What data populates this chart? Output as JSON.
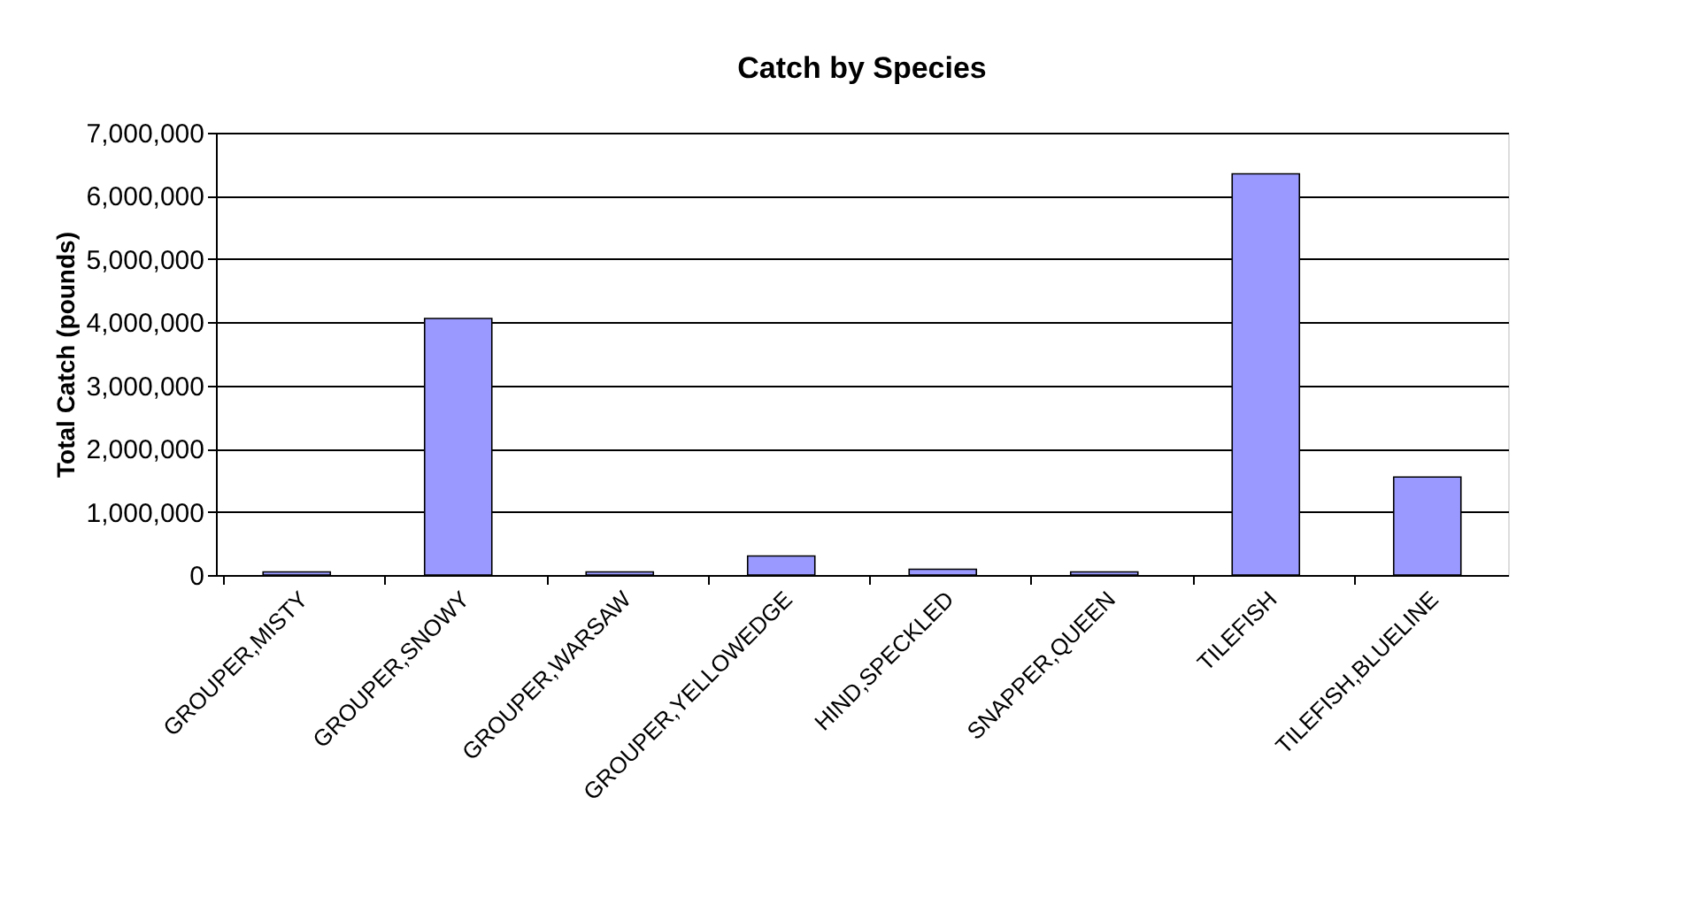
{
  "chart_data": {
    "type": "bar",
    "title": "Catch by Species",
    "ylabel": "Total Catch (pounds)",
    "categories": [
      "GROUPER,MISTY",
      "GROUPER,SNOWY",
      "GROUPER,WARSAW",
      "GROUPER,YELLOWEDGE",
      "HIND,SPECKLED",
      "SNAPPER,QUEEN",
      "TILEFISH",
      "TILEFISH,BLUELINE"
    ],
    "values": [
      50000,
      4060000,
      50000,
      300000,
      90000,
      50000,
      6350000,
      1550000
    ],
    "color": "#9999ff",
    "ylim": [
      0,
      7000000
    ],
    "yticks": [
      {
        "value": 0,
        "label": "0"
      },
      {
        "value": 1000000,
        "label": "1,000,000"
      },
      {
        "value": 2000000,
        "label": "2,000,000"
      },
      {
        "value": 3000000,
        "label": "3,000,000"
      },
      {
        "value": 4000000,
        "label": "4,000,000"
      },
      {
        "value": 5000000,
        "label": "5,000,000"
      },
      {
        "value": 6000000,
        "label": "6,000,000"
      },
      {
        "value": 7000000,
        "label": "7,000,000"
      }
    ],
    "grid": "y",
    "legend": false
  }
}
